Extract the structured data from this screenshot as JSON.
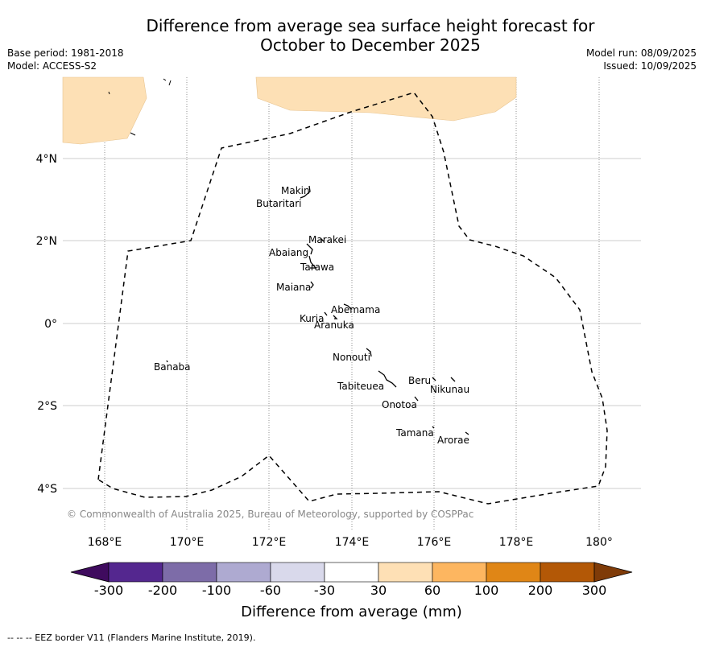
{
  "title": {
    "line1": "Difference from average sea surface height forecast for",
    "line2": "October to December 2025"
  },
  "meta_left": {
    "base_period": "Base period: 1981-2018",
    "model": "Model: ACCESS-S2"
  },
  "meta_right": {
    "model_run": "Model run: 08/09/2025",
    "issued": "Issued: 10/09/2025"
  },
  "map": {
    "lat_labels": [
      "4°N",
      "2°N",
      "0°",
      "2°S",
      "4°S"
    ],
    "lon_labels": [
      "168°E",
      "170°E",
      "172°E",
      "174°E",
      "176°E",
      "178°E",
      "180°"
    ],
    "place_names": [
      "Makin",
      "Butaritari",
      "Marakei",
      "Abaiang",
      "Tarawa",
      "Maiana",
      "Abemama",
      "Kuria",
      "Aranuka",
      "Banaba",
      "Nonouti",
      "Beru",
      "Nikunau",
      "Tabiteuea",
      "Onotoa",
      "Tamana",
      "Arorae"
    ],
    "land_color": "#fde0b5",
    "copyright": "© Commonwealth of Australia 2025, Bureau of Meteorology, supported by COSPPac"
  },
  "colorbar": {
    "colors": [
      "#3f0b5e",
      "#54278f",
      "#7d6ca8",
      "#aeaad1",
      "#d9d9eb",
      "#ffffff",
      "#fee0b5",
      "#fdb660",
      "#e08616",
      "#b35806",
      "#7f3b08"
    ],
    "labels": [
      "-300",
      "-200",
      "-100",
      "-60",
      "-30",
      "30",
      "60",
      "100",
      "200",
      "300"
    ],
    "title": "Difference from average (mm)"
  },
  "footer": "--  --  -- EEZ border V11 (Flanders Marine Institute, 2019)."
}
